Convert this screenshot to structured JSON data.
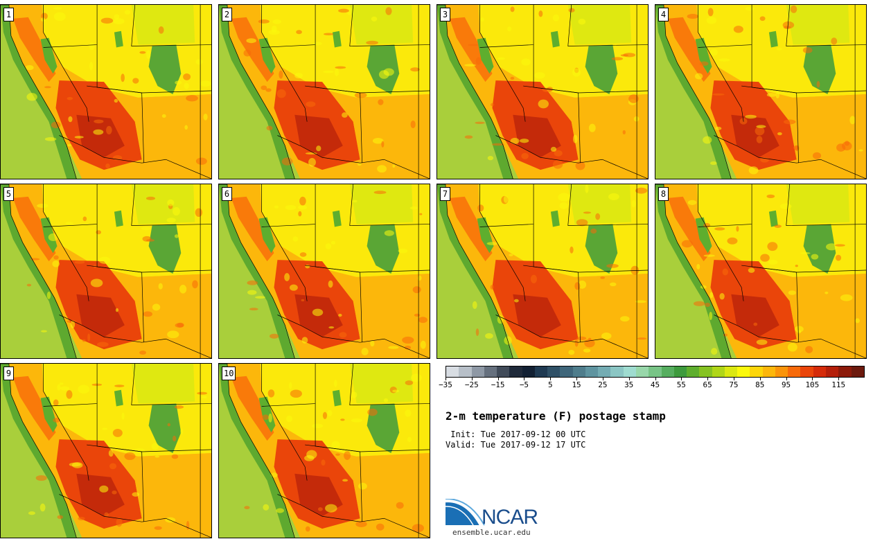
{
  "panels": [
    {
      "label": "1"
    },
    {
      "label": "2"
    },
    {
      "label": "3"
    },
    {
      "label": "4"
    },
    {
      "label": "5"
    },
    {
      "label": "6"
    },
    {
      "label": "7"
    },
    {
      "label": "8"
    },
    {
      "label": "9"
    },
    {
      "label": "10"
    }
  ],
  "colorbar": {
    "colors": [
      "#d8dde3",
      "#b7bfc8",
      "#8e98a5",
      "#66707e",
      "#414b59",
      "#1f2a3a",
      "#122033",
      "#1f3a52",
      "#2f5066",
      "#3f667a",
      "#4f7d8c",
      "#5f94a0",
      "#74acb3",
      "#8bc6c4",
      "#9fdcd0",
      "#98d7aa",
      "#78c486",
      "#56ae5f",
      "#3d9a3d",
      "#5eae2e",
      "#86c322",
      "#b0d618",
      "#dbe812",
      "#fbf90c",
      "#fdd60a",
      "#fcb70b",
      "#fa940a",
      "#f76a0a",
      "#ea450a",
      "#d52b0a",
      "#b41f0a",
      "#8c1a0a",
      "#6c1a0e"
    ],
    "tick_labels": [
      "−35",
      "−25",
      "−15",
      "−5",
      "5",
      "15",
      "25",
      "35",
      "45",
      "55",
      "65",
      "75",
      "85",
      "95",
      "105",
      "115"
    ],
    "tick_values": [
      -35,
      -25,
      -15,
      -5,
      5,
      15,
      25,
      35,
      45,
      55,
      65,
      75,
      85,
      95,
      105,
      115
    ],
    "range": [
      -35,
      125
    ]
  },
  "title": "2-m temperature (F) postage stamp",
  "init": " Init: Tue 2017-09-12 00 UTC",
  "valid": "Valid: Tue 2017-09-12 17 UTC",
  "logo": {
    "text": "NCAR",
    "site": "ensemble.ucar.edu",
    "colors": {
      "blue": "#1a4d8c",
      "light": "#5ea9dd"
    }
  },
  "map_colors": {
    "ocean": "#a9cf3b",
    "coast": "#5ea92f",
    "land": "#fcb70b",
    "warm": "#f76a0a",
    "hot": "#ea450a",
    "hottest": "#b41f0a",
    "mild": "#fbf90c",
    "cool": "#dbe812",
    "mountain": "#5eae2e",
    "forest": "#3d9a3d"
  }
}
